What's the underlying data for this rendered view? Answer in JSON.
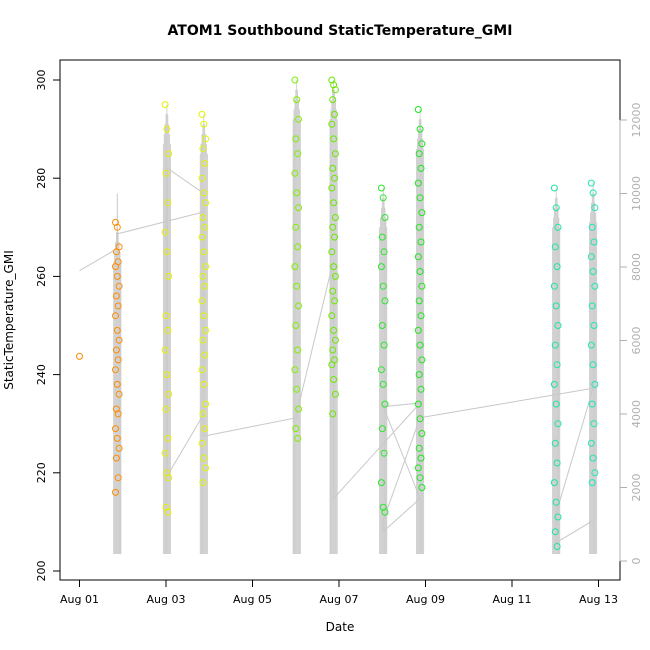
{
  "chart_data": {
    "type": "scatter",
    "title": "ATOM1 Southbound StaticTemperature_GMI",
    "xlabel": "Date",
    "ylabel": "StaticTemperature_GMI",
    "xlim": [
      "2016-08-01",
      "2016-08-13"
    ],
    "x_ticks": [
      "Aug 01",
      "Aug 03",
      "Aug 05",
      "Aug 07",
      "Aug 09",
      "Aug 11",
      "Aug 13"
    ],
    "ylim": [
      200,
      300
    ],
    "y_ticks": [
      200,
      220,
      240,
      260,
      280,
      300
    ],
    "y2lim": [
      0,
      12000
    ],
    "y2_ticks": [
      0,
      2000,
      4000,
      6000,
      8000,
      10000,
      12000
    ],
    "grid": false,
    "legend": "none",
    "secondary_line_color": "#c8c8c8",
    "series": [
      {
        "color": "#ff8c00",
        "points": [
          [
            "2016-08-01",
            243.7
          ]
        ]
      },
      {
        "color": "#ff8c00",
        "x": "2016-08-01 21:00",
        "values": [
          271,
          270,
          266,
          265,
          263,
          262,
          260,
          258,
          256,
          254,
          252,
          249,
          247,
          245,
          243,
          241,
          238,
          236,
          233,
          232,
          229,
          227,
          225,
          223,
          219,
          216
        ]
      },
      {
        "color": "#e6f000",
        "x": "2016-08-03 00:30",
        "values": [
          295,
          290,
          285,
          281,
          275,
          269,
          265,
          260,
          252,
          249,
          245,
          240,
          236,
          233,
          227,
          224,
          220,
          219,
          213,
          212
        ]
      },
      {
        "color": "#e2f500",
        "x": "2016-08-03 21:00",
        "values": [
          293,
          291,
          288,
          286,
          283,
          280,
          277,
          275,
          272,
          270,
          268,
          265,
          262,
          260,
          258,
          255,
          252,
          249,
          247,
          244,
          241,
          238,
          234,
          232,
          229,
          226,
          223,
          221,
          218
        ]
      },
      {
        "color": "#7fef00",
        "x": "2016-08-06 00:30",
        "values": [
          300,
          296,
          292,
          288,
          285,
          281,
          277,
          274,
          270,
          266,
          262,
          258,
          254,
          250,
          245,
          241,
          237,
          233,
          229,
          227
        ]
      },
      {
        "color": "#6ae800",
        "x": "2016-08-06 21:00",
        "values": [
          300,
          299,
          298,
          296,
          293,
          291,
          288,
          285,
          282,
          280,
          278,
          275,
          272,
          270,
          268,
          265,
          262,
          260,
          257,
          255,
          252,
          249,
          247,
          245,
          243,
          242,
          239,
          236,
          232
        ]
      },
      {
        "color": "#2ee62e",
        "x": "2016-08-08 00:30",
        "values": [
          278,
          276,
          272,
          268,
          265,
          262,
          258,
          255,
          250,
          246,
          241,
          238,
          234,
          229,
          224,
          218,
          213,
          212
        ]
      },
      {
        "color": "#1ee61e",
        "x": "2016-08-08 21:00",
        "values": [
          294,
          290,
          287,
          285,
          282,
          279,
          276,
          273,
          270,
          267,
          264,
          261,
          258,
          255,
          252,
          249,
          246,
          243,
          240,
          237,
          234,
          231,
          228,
          225,
          223,
          221,
          219,
          217
        ]
      },
      {
        "color": "#1be6a0",
        "x": "2016-08-12 00:30",
        "values": [
          278,
          274,
          270,
          266,
          262,
          258,
          254,
          250,
          246,
          242,
          238,
          234,
          230,
          226,
          222,
          218,
          214,
          211,
          208,
          205
        ]
      },
      {
        "color": "#1ee6b4",
        "x": "2016-08-12 21:00",
        "values": [
          279,
          277,
          274,
          270,
          267,
          264,
          261,
          258,
          254,
          250,
          246,
          242,
          238,
          234,
          230,
          226,
          223,
          220,
          218
        ]
      }
    ],
    "secondary_line": {
      "y_axis": "y2",
      "x": [
        "2016-08-01",
        "2016-08-01 21:00",
        "2016-08-01 21:00",
        "2016-08-01 21:00",
        "2016-08-03 21:00",
        "2016-08-03 21:00",
        "2016-08-03 00:30",
        "2016-08-03 00:30",
        "2016-08-03 21:00",
        "2016-08-03 21:00",
        "2016-08-06 00:30",
        "2016-08-06 00:30",
        "2016-08-06 00:30",
        "2016-08-06 21:00",
        "2016-08-06 21:00",
        "2016-08-06 21:00",
        "2016-08-08 21:00",
        "2016-08-08 00:30",
        "2016-08-08 21:00",
        "2016-08-08 00:30",
        "2016-08-08 00:30",
        "2016-08-08 21:00",
        "2016-08-12 21:00",
        "2016-08-12 00:30",
        "2016-08-12 00:30",
        "2016-08-12 21:00"
      ],
      "values": [
        7900,
        8500,
        10000,
        8900,
        9500,
        4000,
        2300,
        10700,
        10000,
        3400,
        3900,
        4200,
        4000,
        8200,
        3600,
        1700,
        4300,
        4200,
        1700,
        800,
        1100,
        3900,
        4700,
        1300,
        500,
        1100
      ]
    }
  }
}
